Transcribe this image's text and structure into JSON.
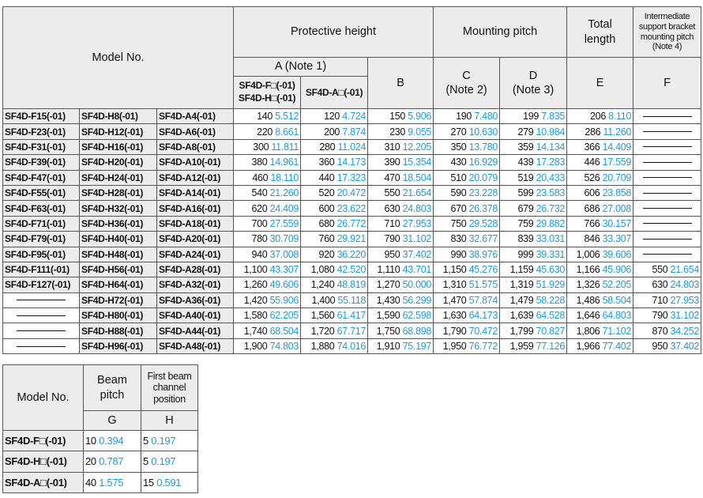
{
  "main_table": {
    "header": {
      "model": "Model No.",
      "protective": "Protective height",
      "mounting": "Mounting pitch",
      "total": [
        "Total",
        "length"
      ],
      "intermediate": [
        "Intermediate",
        "support bracket",
        "mounting pitch",
        "(Note 4)"
      ],
      "a_note": "A (Note 1)",
      "a1": [
        "SF4D-F□(-01)",
        "SF4D-H□(-01)"
      ],
      "a2": "SF4D-A□(-01)",
      "b": "B",
      "c": [
        "C",
        "(Note 2)"
      ],
      "d": [
        "D",
        "(Note 3)"
      ],
      "e": "E",
      "f": "F"
    },
    "rows": [
      {
        "models": [
          "SF4D-F15(-01)",
          "SF4D-H8(-01)",
          "SF4D-A4(-01)"
        ],
        "values": [
          [
            "140",
            "5.512"
          ],
          [
            "120",
            "4.724"
          ],
          [
            "150",
            "5.906"
          ],
          [
            "190",
            "7.480"
          ],
          [
            "199",
            "7.835"
          ],
          [
            "206",
            "8.110"
          ],
          null
        ]
      },
      {
        "models": [
          "SF4D-F23(-01)",
          "SF4D-H12(-01)",
          "SF4D-A6(-01)"
        ],
        "values": [
          [
            "220",
            "8.661"
          ],
          [
            "200",
            "7.874"
          ],
          [
            "230",
            "9.055"
          ],
          [
            "270",
            "10.630"
          ],
          [
            "279",
            "10.984"
          ],
          [
            "286",
            "11.260"
          ],
          null
        ]
      },
      {
        "models": [
          "SF4D-F31(-01)",
          "SF4D-H16(-01)",
          "SF4D-A8(-01)"
        ],
        "values": [
          [
            "300",
            "11.811"
          ],
          [
            "280",
            "11.024"
          ],
          [
            "310",
            "12.205"
          ],
          [
            "350",
            "13.780"
          ],
          [
            "359",
            "14.134"
          ],
          [
            "366",
            "14.409"
          ],
          null
        ]
      },
      {
        "models": [
          "SF4D-F39(-01)",
          "SF4D-H20(-01)",
          "SF4D-A10(-01)"
        ],
        "values": [
          [
            "380",
            "14.961"
          ],
          [
            "360",
            "14.173"
          ],
          [
            "390",
            "15.354"
          ],
          [
            "430",
            "16.929"
          ],
          [
            "439",
            "17.283"
          ],
          [
            "446",
            "17.559"
          ],
          null
        ]
      },
      {
        "models": [
          "SF4D-F47(-01)",
          "SF4D-H24(-01)",
          "SF4D-A12(-01)"
        ],
        "values": [
          [
            "460",
            "18.110"
          ],
          [
            "440",
            "17.323"
          ],
          [
            "470",
            "18.504"
          ],
          [
            "510",
            "20.079"
          ],
          [
            "519",
            "20.433"
          ],
          [
            "526",
            "20.709"
          ],
          null
        ]
      },
      {
        "models": [
          "SF4D-F55(-01)",
          "SF4D-H28(-01)",
          "SF4D-A14(-01)"
        ],
        "values": [
          [
            "540",
            "21.260"
          ],
          [
            "520",
            "20.472"
          ],
          [
            "550",
            "21.654"
          ],
          [
            "590",
            "23.228"
          ],
          [
            "599",
            "23.583"
          ],
          [
            "606",
            "23.858"
          ],
          null
        ]
      },
      {
        "models": [
          "SF4D-F63(-01)",
          "SF4D-H32(-01)",
          "SF4D-A16(-01)"
        ],
        "values": [
          [
            "620",
            "24.409"
          ],
          [
            "600",
            "23.622"
          ],
          [
            "630",
            "24.803"
          ],
          [
            "670",
            "26.378"
          ],
          [
            "679",
            "26.732"
          ],
          [
            "686",
            "27.008"
          ],
          null
        ]
      },
      {
        "models": [
          "SF4D-F71(-01)",
          "SF4D-H36(-01)",
          "SF4D-A18(-01)"
        ],
        "values": [
          [
            "700",
            "27.559"
          ],
          [
            "680",
            "26.772"
          ],
          [
            "710",
            "27.953"
          ],
          [
            "750",
            "29.528"
          ],
          [
            "759",
            "29.882"
          ],
          [
            "766",
            "30.157"
          ],
          null
        ]
      },
      {
        "models": [
          "SF4D-F79(-01)",
          "SF4D-H40(-01)",
          "SF4D-A20(-01)"
        ],
        "values": [
          [
            "780",
            "30.709"
          ],
          [
            "760",
            "29.921"
          ],
          [
            "790",
            "31.102"
          ],
          [
            "830",
            "32.677"
          ],
          [
            "839",
            "33.031"
          ],
          [
            "846",
            "33.307"
          ],
          null
        ]
      },
      {
        "models": [
          "SF4D-F95(-01)",
          "SF4D-H48(-01)",
          "SF4D-A24(-01)"
        ],
        "values": [
          [
            "940",
            "37.008"
          ],
          [
            "920",
            "36.220"
          ],
          [
            "950",
            "37.402"
          ],
          [
            "990",
            "38.976"
          ],
          [
            "999",
            "39.331"
          ],
          [
            "1,006",
            "39.606"
          ],
          null
        ]
      },
      {
        "models": [
          "SF4D-F111(-01)",
          "SF4D-H56(-01)",
          "SF4D-A28(-01)"
        ],
        "values": [
          [
            "1,100",
            "43.307"
          ],
          [
            "1,080",
            "42.520"
          ],
          [
            "1,110",
            "43.701"
          ],
          [
            "1,150",
            "45.276"
          ],
          [
            "1,159",
            "45.630"
          ],
          [
            "1,166",
            "45.906"
          ],
          [
            "550",
            "21.654"
          ]
        ]
      },
      {
        "models": [
          "SF4D-F127(-01)",
          "SF4D-H64(-01)",
          "SF4D-A32(-01)"
        ],
        "values": [
          [
            "1,260",
            "49.606"
          ],
          [
            "1,240",
            "48.819"
          ],
          [
            "1,270",
            "50.000"
          ],
          [
            "1,310",
            "51.575"
          ],
          [
            "1,319",
            "51.929"
          ],
          [
            "1,326",
            "52.205"
          ],
          [
            "630",
            "24.803"
          ]
        ]
      },
      {
        "models": [
          null,
          "SF4D-H72(-01)",
          "SF4D-A36(-01)"
        ],
        "values": [
          [
            "1,420",
            "55.906"
          ],
          [
            "1,400",
            "55.118"
          ],
          [
            "1,430",
            "56.299"
          ],
          [
            "1,470",
            "57.874"
          ],
          [
            "1,479",
            "58.228"
          ],
          [
            "1,486",
            "58.504"
          ],
          [
            "710",
            "27.953"
          ]
        ]
      },
      {
        "models": [
          null,
          "SF4D-H80(-01)",
          "SF4D-A40(-01)"
        ],
        "values": [
          [
            "1,580",
            "62.205"
          ],
          [
            "1,560",
            "61.417"
          ],
          [
            "1,590",
            "62.598"
          ],
          [
            "1,630",
            "64.173"
          ],
          [
            "1,639",
            "64.528"
          ],
          [
            "1,646",
            "64.803"
          ],
          [
            "790",
            "31.102"
          ]
        ]
      },
      {
        "models": [
          null,
          "SF4D-H88(-01)",
          "SF4D-A44(-01)"
        ],
        "values": [
          [
            "1,740",
            "68.504"
          ],
          [
            "1,720",
            "67.717"
          ],
          [
            "1,750",
            "68.898"
          ],
          [
            "1,790",
            "70.472"
          ],
          [
            "1,799",
            "70.827"
          ],
          [
            "1,806",
            "71.102"
          ],
          [
            "870",
            "34.252"
          ]
        ]
      },
      {
        "models": [
          null,
          "SF4D-H96(-01)",
          "SF4D-A48(-01)"
        ],
        "values": [
          [
            "1,900",
            "74.803"
          ],
          [
            "1,880",
            "74.016"
          ],
          [
            "1,910",
            "75.197"
          ],
          [
            "1,950",
            "76.772"
          ],
          [
            "1,959",
            "77.126"
          ],
          [
            "1,966",
            "77.402"
          ],
          [
            "950",
            "37.402"
          ]
        ]
      }
    ]
  },
  "pitch_table": {
    "header": {
      "model": "Model No.",
      "beam_pitch": [
        "Beam",
        "pitch"
      ],
      "first_beam": [
        "First beam",
        "channel",
        "position"
      ],
      "g": "G",
      "h": "H"
    },
    "rows": [
      {
        "model": "SF4D-F□(-01)",
        "values": [
          [
            "10",
            "0.394"
          ],
          [
            "5",
            "0.197"
          ]
        ]
      },
      {
        "model": "SF4D-H□(-01)",
        "values": [
          [
            "20",
            "0.787"
          ],
          [
            "5",
            "0.197"
          ]
        ]
      },
      {
        "model": "SF4D-A□(-01)",
        "values": [
          [
            "40",
            "1.575"
          ],
          [
            "15",
            "0.591"
          ]
        ]
      }
    ]
  }
}
